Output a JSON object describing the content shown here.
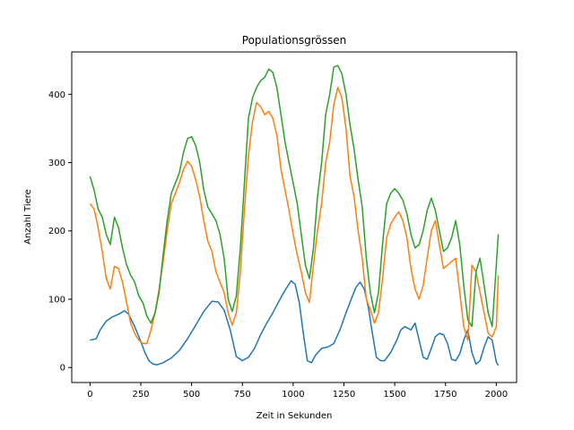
{
  "chart_data": {
    "type": "line",
    "title": "Populationsgrössen",
    "xlabel": "Zeit in Sekunden",
    "ylabel": "Anzahl Tiere",
    "xlim": [
      -90,
      2100
    ],
    "ylim": [
      -22,
      462
    ],
    "xticks": [
      0,
      250,
      500,
      750,
      1000,
      1250,
      1500,
      1750,
      2000
    ],
    "yticks": [
      0,
      100,
      200,
      300,
      400
    ],
    "grid": false,
    "legend": "none",
    "series": [
      {
        "color": "#1f77b4",
        "x": [
          0,
          30,
          50,
          80,
          110,
          140,
          170,
          190,
          220,
          250,
          270,
          290,
          310,
          330,
          360,
          400,
          440,
          480,
          520,
          560,
          600,
          630,
          660,
          690,
          720,
          750,
          780,
          810,
          840,
          870,
          900,
          930,
          960,
          990,
          1010,
          1030,
          1050,
          1070,
          1090,
          1110,
          1140,
          1170,
          1200,
          1230,
          1260,
          1290,
          1310,
          1330,
          1350,
          1370,
          1390,
          1410,
          1430,
          1450,
          1480,
          1510,
          1530,
          1550,
          1580,
          1600,
          1620,
          1640,
          1660,
          1680,
          1700,
          1720,
          1740,
          1760,
          1780,
          1800,
          1820,
          1840,
          1860,
          1880,
          1900,
          1920,
          1940,
          1960,
          1980,
          2000,
          2010
        ],
        "values": [
          40,
          42,
          55,
          68,
          74,
          78,
          83,
          78,
          60,
          38,
          22,
          10,
          5,
          4,
          7,
          14,
          25,
          42,
          62,
          82,
          97,
          96,
          84,
          55,
          16,
          10,
          15,
          28,
          48,
          65,
          80,
          97,
          113,
          127,
          122,
          95,
          50,
          10,
          7,
          18,
          28,
          30,
          35,
          55,
          80,
          103,
          118,
          125,
          115,
          88,
          50,
          15,
          10,
          10,
          22,
          40,
          55,
          60,
          55,
          65,
          40,
          15,
          12,
          28,
          45,
          50,
          48,
          35,
          12,
          10,
          20,
          40,
          55,
          22,
          5,
          10,
          30,
          45,
          40,
          8,
          3
        ]
      },
      {
        "color": "#ff7f0e",
        "x": [
          0,
          20,
          40,
          60,
          80,
          100,
          120,
          140,
          160,
          180,
          200,
          220,
          240,
          260,
          280,
          300,
          320,
          340,
          360,
          380,
          400,
          420,
          440,
          460,
          480,
          500,
          520,
          540,
          560,
          580,
          600,
          620,
          640,
          660,
          680,
          700,
          720,
          740,
          760,
          780,
          800,
          820,
          840,
          860,
          880,
          900,
          920,
          940,
          960,
          980,
          1000,
          1020,
          1040,
          1060,
          1080,
          1100,
          1120,
          1140,
          1160,
          1180,
          1200,
          1220,
          1240,
          1260,
          1280,
          1300,
          1320,
          1340,
          1360,
          1380,
          1400,
          1420,
          1440,
          1460,
          1480,
          1500,
          1520,
          1540,
          1560,
          1580,
          1600,
          1620,
          1640,
          1660,
          1680,
          1700,
          1720,
          1740,
          1760,
          1780,
          1800,
          1820,
          1840,
          1860,
          1880,
          1900,
          1920,
          1940,
          1960,
          1980,
          2000,
          2010
        ],
        "values": [
          240,
          232,
          205,
          170,
          130,
          115,
          148,
          145,
          125,
          95,
          65,
          50,
          40,
          35,
          35,
          55,
          80,
          115,
          155,
          200,
          240,
          255,
          270,
          290,
          302,
          295,
          275,
          250,
          215,
          185,
          170,
          140,
          125,
          110,
          80,
          62,
          80,
          140,
          230,
          310,
          360,
          388,
          382,
          370,
          375,
          365,
          340,
          290,
          260,
          230,
          195,
          165,
          140,
          110,
          95,
          150,
          200,
          240,
          300,
          330,
          385,
          410,
          395,
          350,
          280,
          250,
          200,
          160,
          100,
          85,
          65,
          80,
          130,
          190,
          210,
          220,
          228,
          215,
          190,
          145,
          115,
          100,
          120,
          160,
          200,
          215,
          180,
          145,
          150,
          155,
          160,
          110,
          60,
          40,
          150,
          140,
          110,
          80,
          50,
          45,
          60,
          135
        ]
      },
      {
        "color": "#2ca02c",
        "x": [
          0,
          20,
          40,
          60,
          80,
          100,
          120,
          140,
          160,
          180,
          200,
          220,
          240,
          260,
          280,
          300,
          320,
          340,
          360,
          380,
          400,
          420,
          440,
          460,
          480,
          500,
          520,
          540,
          560,
          580,
          600,
          620,
          640,
          660,
          680,
          700,
          720,
          740,
          760,
          780,
          800,
          820,
          840,
          860,
          880,
          900,
          920,
          940,
          960,
          980,
          1000,
          1020,
          1040,
          1060,
          1080,
          1100,
          1120,
          1140,
          1160,
          1180,
          1200,
          1220,
          1240,
          1260,
          1280,
          1300,
          1320,
          1340,
          1360,
          1380,
          1400,
          1420,
          1440,
          1460,
          1480,
          1500,
          1520,
          1540,
          1560,
          1580,
          1600,
          1620,
          1640,
          1660,
          1680,
          1700,
          1720,
          1740,
          1760,
          1780,
          1800,
          1820,
          1840,
          1860,
          1880,
          1900,
          1920,
          1940,
          1960,
          1980,
          2000,
          2010
        ],
        "values": [
          280,
          260,
          232,
          220,
          195,
          180,
          220,
          205,
          175,
          150,
          135,
          125,
          105,
          95,
          75,
          65,
          80,
          110,
          165,
          215,
          255,
          270,
          285,
          315,
          335,
          338,
          325,
          300,
          260,
          235,
          225,
          215,
          195,
          160,
          100,
          82,
          105,
          175,
          270,
          365,
          395,
          410,
          420,
          425,
          437,
          432,
          410,
          370,
          330,
          300,
          270,
          240,
          195,
          150,
          130,
          175,
          250,
          300,
          370,
          400,
          440,
          442,
          430,
          400,
          355,
          320,
          275,
          235,
          160,
          110,
          80,
          110,
          180,
          240,
          255,
          262,
          255,
          245,
          225,
          195,
          175,
          180,
          200,
          230,
          248,
          230,
          200,
          170,
          175,
          190,
          215,
          180,
          120,
          70,
          60,
          140,
          160,
          120,
          80,
          60,
          150,
          195
        ]
      }
    ]
  }
}
